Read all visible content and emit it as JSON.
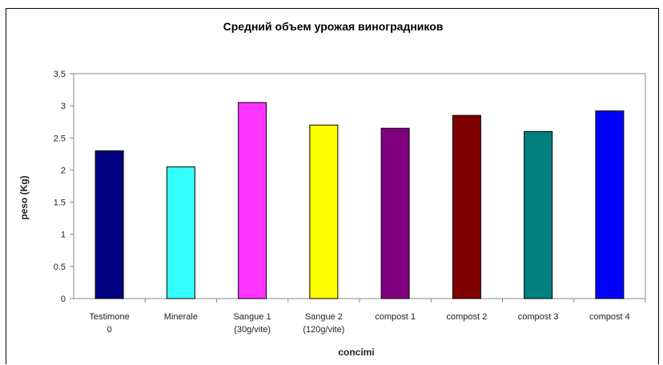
{
  "chart_data": {
    "type": "bar",
    "title": "Средний объем урожая виноградников",
    "xlabel": "concimi",
    "ylabel": "peso (Kg)",
    "ylim": [
      0,
      3.5
    ],
    "yticks": [
      "0",
      "0.5",
      "1",
      "1.5",
      "2",
      "2.5",
      "3",
      "3.5"
    ],
    "grid": false,
    "legend": "none",
    "categories": [
      [
        "Testimone",
        "0"
      ],
      [
        "Minerale"
      ],
      [
        "Sangue 1",
        "(30g/vite)"
      ],
      [
        "Sangue 2",
        "(120g/vite)"
      ],
      [
        "compost 1"
      ],
      [
        "compost 2"
      ],
      [
        "compost 3"
      ],
      [
        "compost 4"
      ]
    ],
    "values": [
      2.3,
      2.05,
      3.05,
      2.7,
      2.65,
      2.85,
      2.6,
      2.92
    ],
    "colors": [
      "#000080",
      "#33ffff",
      "#ff33ff",
      "#ffff00",
      "#800080",
      "#800000",
      "#008080",
      "#0000ff"
    ],
    "axis_color": "#888888",
    "bar_outline": "#000000"
  }
}
